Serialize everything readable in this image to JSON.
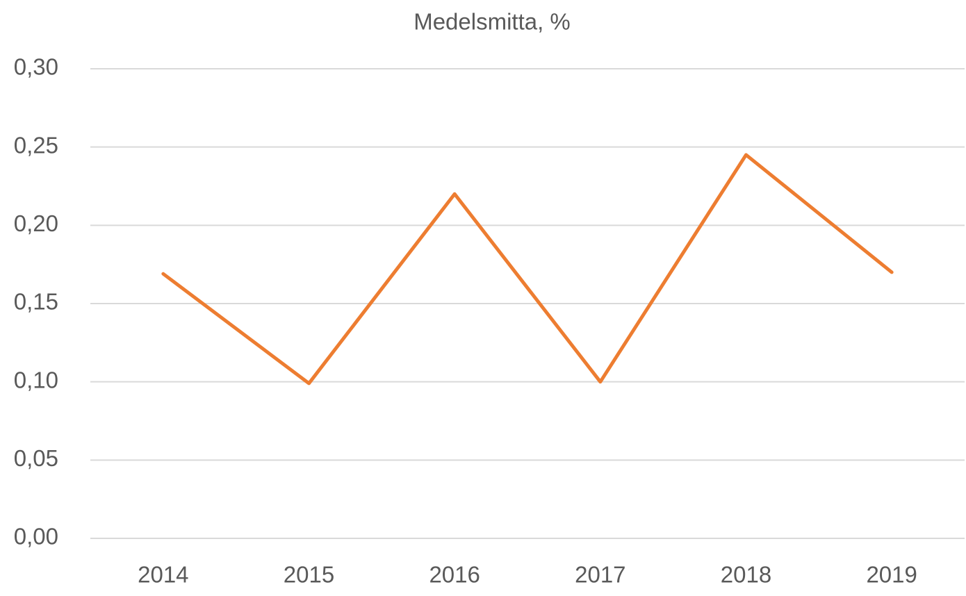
{
  "chart_data": {
    "type": "line",
    "title": "Medelsmitta, %",
    "categories": [
      "2014",
      "2015",
      "2016",
      "2017",
      "2018",
      "2019"
    ],
    "series": [
      {
        "name": "Medelsmitta, %",
        "color": "#ed7d31",
        "values": [
          0.169,
          0.099,
          0.22,
          0.1,
          0.245,
          0.17
        ]
      }
    ],
    "ylim": [
      0,
      0.3
    ],
    "yticks": [
      {
        "value": 0,
        "label": "0,00"
      },
      {
        "value": 0.05,
        "label": "0,05"
      },
      {
        "value": 0.1,
        "label": "0,10"
      },
      {
        "value": 0.15,
        "label": "0,15"
      },
      {
        "value": 0.2,
        "label": "0,20"
      },
      {
        "value": 0.25,
        "label": "0,25"
      },
      {
        "value": 0.3,
        "label": "0,30"
      }
    ],
    "grid": true
  }
}
